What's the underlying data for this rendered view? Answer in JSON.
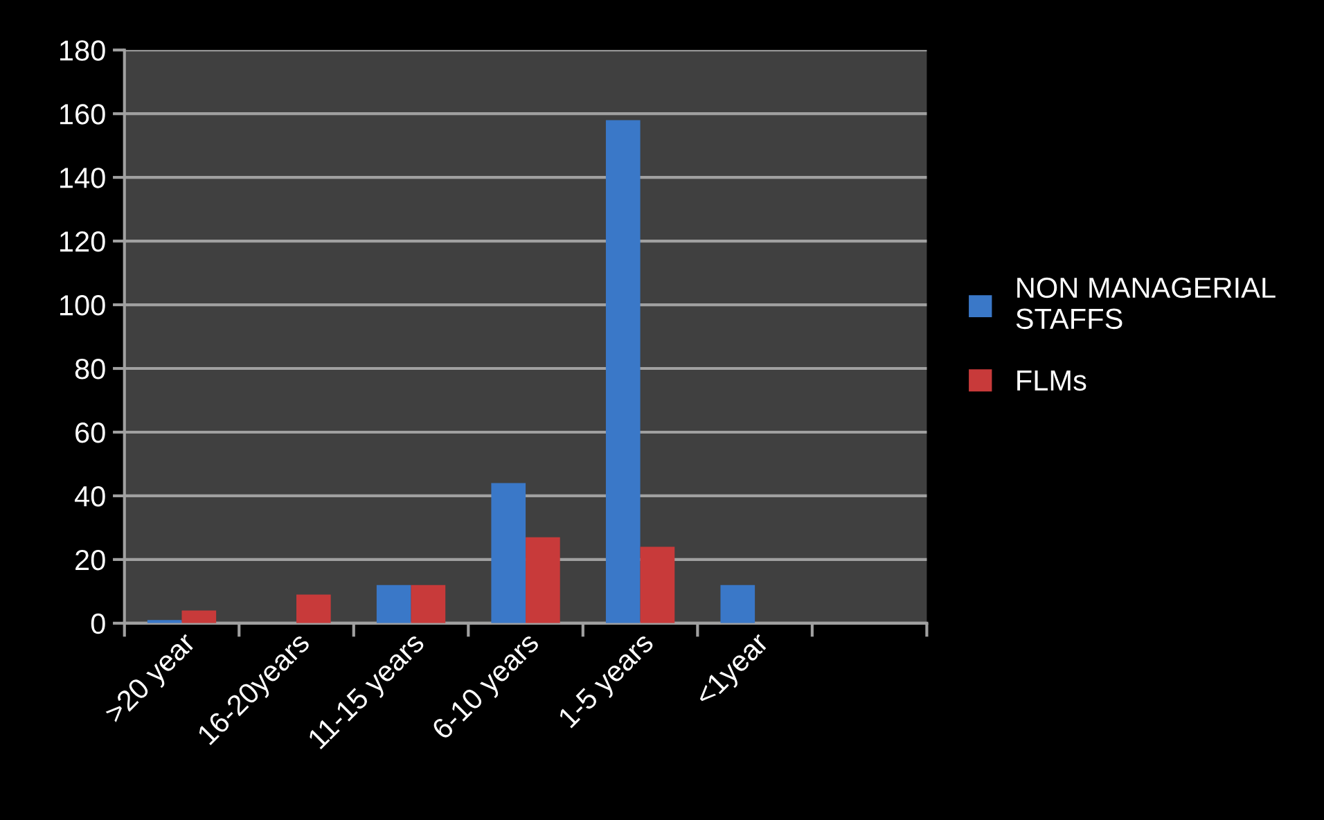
{
  "chart_data": {
    "type": "bar",
    "categories": [
      ">20 year",
      "16-20years",
      "11-15 years",
      "6-10 years",
      "1-5 years",
      "<1year",
      null
    ],
    "series": [
      {
        "name": "NON MANAGERIAL STAFFS",
        "color": "#3a78c8",
        "values": [
          1,
          null,
          12,
          44,
          158,
          12,
          null
        ]
      },
      {
        "name": "FLMs",
        "color": "#c83a3a",
        "values": [
          4,
          9,
          12,
          27,
          24,
          null,
          null
        ]
      }
    ],
    "ylim": [
      0,
      180
    ],
    "yticks": [
      0,
      20,
      40,
      60,
      80,
      100,
      120,
      140,
      160,
      180
    ],
    "grid": "y",
    "legend": "right"
  }
}
